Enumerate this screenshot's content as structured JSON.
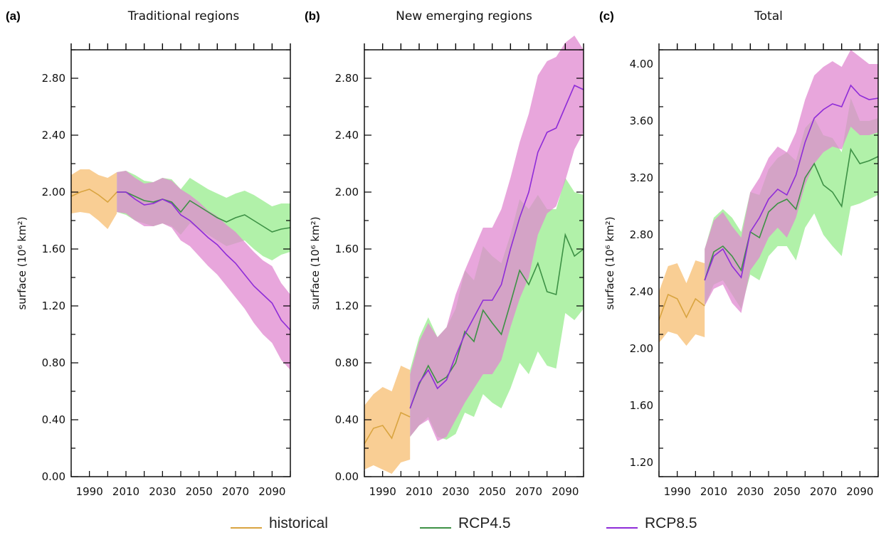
{
  "legend": {
    "historical": "historical",
    "rcp45": "RCP4.5",
    "rcp85": "RCP8.5"
  },
  "colors": {
    "historical_line": "#d9a440",
    "historical_band": "#f8c988",
    "rcp45_line": "#3d9145",
    "rcp45_band": "#a8f0a0",
    "rcp85_line": "#8e2cd8",
    "rcp85_band": "#e088d0"
  },
  "chart_data": [
    {
      "type": "line",
      "panel_label": "(a)",
      "title": "Traditional regions",
      "ylabel": "surface (10⁶ km²)",
      "xlim": [
        1980,
        2100
      ],
      "ylim": [
        0.0,
        3.0
      ],
      "yticks": [
        "0.00",
        "0.40",
        "0.80",
        "1.20",
        "1.60",
        "2.00",
        "2.40",
        "2.80"
      ],
      "xticks": [
        "1990",
        "2010",
        "2030",
        "2050",
        "2070",
        "2090"
      ],
      "series": [
        {
          "name": "historical",
          "x": [
            1980,
            1985,
            1990,
            1995,
            2000,
            2005
          ],
          "values": [
            1.97,
            2.0,
            2.02,
            1.98,
            1.93,
            2.0
          ],
          "lower": [
            1.85,
            1.86,
            1.85,
            1.8,
            1.74,
            1.85
          ],
          "upper": [
            2.12,
            2.16,
            2.16,
            2.12,
            2.1,
            2.14
          ]
        },
        {
          "name": "RCP4.5",
          "x": [
            2005,
            2010,
            2015,
            2020,
            2025,
            2030,
            2035,
            2040,
            2045,
            2050,
            2055,
            2060,
            2065,
            2070,
            2075,
            2080,
            2085,
            2090,
            2095,
            2100
          ],
          "values": [
            2.0,
            2.0,
            1.97,
            1.94,
            1.93,
            1.95,
            1.93,
            1.86,
            1.94,
            1.9,
            1.86,
            1.82,
            1.79,
            1.82,
            1.84,
            1.8,
            1.76,
            1.72,
            1.74,
            1.75
          ],
          "lower": [
            1.86,
            1.84,
            1.8,
            1.78,
            1.76,
            1.78,
            1.76,
            1.7,
            1.78,
            1.74,
            1.7,
            1.66,
            1.62,
            1.64,
            1.66,
            1.6,
            1.55,
            1.52,
            1.56,
            1.58
          ],
          "upper": [
            2.14,
            2.15,
            2.12,
            2.08,
            2.07,
            2.1,
            2.09,
            2.02,
            2.1,
            2.06,
            2.02,
            1.99,
            1.96,
            1.99,
            2.01,
            1.98,
            1.94,
            1.9,
            1.92,
            1.92
          ]
        },
        {
          "name": "RCP8.5",
          "x": [
            2005,
            2010,
            2015,
            2020,
            2025,
            2030,
            2035,
            2040,
            2045,
            2050,
            2055,
            2060,
            2065,
            2070,
            2075,
            2080,
            2085,
            2090,
            2095,
            2100
          ],
          "values": [
            2.0,
            2.0,
            1.95,
            1.91,
            1.92,
            1.95,
            1.92,
            1.84,
            1.8,
            1.74,
            1.68,
            1.63,
            1.56,
            1.5,
            1.42,
            1.34,
            1.28,
            1.22,
            1.1,
            1.03
          ],
          "lower": [
            1.86,
            1.85,
            1.8,
            1.76,
            1.76,
            1.78,
            1.75,
            1.66,
            1.62,
            1.55,
            1.48,
            1.42,
            1.34,
            1.26,
            1.18,
            1.08,
            1.0,
            0.94,
            0.82,
            0.75
          ],
          "upper": [
            2.14,
            2.15,
            2.1,
            2.06,
            2.07,
            2.1,
            2.08,
            2.02,
            1.98,
            1.93,
            1.87,
            1.83,
            1.77,
            1.72,
            1.65,
            1.58,
            1.52,
            1.48,
            1.36,
            1.28
          ]
        }
      ]
    },
    {
      "type": "line",
      "panel_label": "(b)",
      "title": "New emerging regions",
      "ylabel": "surface (10⁶ km²)",
      "xlim": [
        1980,
        2100
      ],
      "ylim": [
        0.0,
        3.0
      ],
      "yticks": [
        "0.00",
        "0.40",
        "0.80",
        "1.20",
        "1.60",
        "2.00",
        "2.40",
        "2.80"
      ],
      "xticks": [
        "1990",
        "2010",
        "2030",
        "2050",
        "2070",
        "2090"
      ],
      "series": [
        {
          "name": "historical",
          "x": [
            1980,
            1985,
            1990,
            1995,
            2000,
            2005
          ],
          "values": [
            0.23,
            0.34,
            0.36,
            0.27,
            0.45,
            0.42
          ],
          "lower": [
            0.05,
            0.08,
            0.05,
            0.02,
            0.1,
            0.12
          ],
          "upper": [
            0.5,
            0.58,
            0.63,
            0.6,
            0.78,
            0.75
          ]
        },
        {
          "name": "RCP4.5",
          "x": [
            2005,
            2010,
            2015,
            2020,
            2025,
            2030,
            2035,
            2040,
            2045,
            2050,
            2055,
            2060,
            2065,
            2070,
            2075,
            2080,
            2085,
            2090,
            2095,
            2100
          ],
          "values": [
            0.48,
            0.65,
            0.78,
            0.66,
            0.7,
            0.8,
            1.02,
            0.95,
            1.17,
            1.08,
            1.0,
            1.22,
            1.45,
            1.35,
            1.5,
            1.3,
            1.28,
            1.7,
            1.55,
            1.6
          ],
          "lower": [
            0.28,
            0.36,
            0.42,
            0.28,
            0.26,
            0.3,
            0.45,
            0.42,
            0.58,
            0.52,
            0.48,
            0.62,
            0.8,
            0.72,
            0.88,
            0.78,
            0.76,
            1.15,
            1.1,
            1.18
          ],
          "upper": [
            0.75,
            0.98,
            1.12,
            0.98,
            1.05,
            1.18,
            1.45,
            1.38,
            1.62,
            1.55,
            1.5,
            1.7,
            1.95,
            1.88,
            1.98,
            1.88,
            1.88,
            2.1,
            2.0,
            1.98
          ]
        },
        {
          "name": "RCP8.5",
          "x": [
            2005,
            2010,
            2015,
            2020,
            2025,
            2030,
            2035,
            2040,
            2045,
            2050,
            2055,
            2060,
            2065,
            2070,
            2075,
            2080,
            2085,
            2090,
            2095,
            2100
          ],
          "values": [
            0.48,
            0.66,
            0.75,
            0.62,
            0.68,
            0.85,
            1.0,
            1.12,
            1.24,
            1.24,
            1.35,
            1.6,
            1.82,
            2.0,
            2.28,
            2.42,
            2.45,
            2.6,
            2.75,
            2.72
          ],
          "lower": [
            0.28,
            0.36,
            0.4,
            0.25,
            0.28,
            0.4,
            0.52,
            0.62,
            0.72,
            0.72,
            0.82,
            1.05,
            1.25,
            1.4,
            1.7,
            1.85,
            1.9,
            2.08,
            2.3,
            2.42
          ],
          "upper": [
            0.72,
            0.95,
            1.08,
            0.98,
            1.05,
            1.28,
            1.45,
            1.6,
            1.75,
            1.75,
            1.88,
            2.1,
            2.35,
            2.55,
            2.82,
            2.92,
            2.95,
            3.05,
            3.1,
            3.0
          ]
        }
      ]
    },
    {
      "type": "line",
      "panel_label": "(c)",
      "title": "Total",
      "ylabel": "surface (10⁶ km²)",
      "xlim": [
        1980,
        2100
      ],
      "ylim": [
        1.1,
        4.1
      ],
      "yticks": [
        "1.20",
        "1.60",
        "2.00",
        "2.40",
        "2.80",
        "3.20",
        "3.60",
        "4.00"
      ],
      "xticks": [
        "1990",
        "2010",
        "2030",
        "2050",
        "2070",
        "2090"
      ],
      "series": [
        {
          "name": "historical",
          "x": [
            1980,
            1985,
            1990,
            1995,
            2000,
            2005
          ],
          "values": [
            2.2,
            2.38,
            2.35,
            2.22,
            2.35,
            2.3
          ],
          "lower": [
            2.04,
            2.12,
            2.1,
            2.02,
            2.1,
            2.08
          ],
          "upper": [
            2.4,
            2.58,
            2.6,
            2.46,
            2.62,
            2.6
          ]
        },
        {
          "name": "RCP4.5",
          "x": [
            2005,
            2010,
            2015,
            2020,
            2025,
            2030,
            2035,
            2040,
            2045,
            2050,
            2055,
            2060,
            2065,
            2070,
            2075,
            2080,
            2085,
            2090,
            2095,
            2100
          ],
          "values": [
            2.48,
            2.68,
            2.72,
            2.65,
            2.55,
            2.82,
            2.78,
            2.96,
            3.02,
            3.05,
            2.98,
            3.2,
            3.3,
            3.15,
            3.1,
            3.0,
            3.4,
            3.3,
            3.32,
            3.35
          ],
          "lower": [
            2.3,
            2.45,
            2.48,
            2.38,
            2.28,
            2.52,
            2.48,
            2.65,
            2.72,
            2.72,
            2.62,
            2.85,
            2.95,
            2.8,
            2.72,
            2.65,
            3.0,
            3.02,
            3.05,
            3.08
          ],
          "upper": [
            2.7,
            2.92,
            2.98,
            2.92,
            2.82,
            3.1,
            3.08,
            3.26,
            3.34,
            3.38,
            3.32,
            3.55,
            3.62,
            3.5,
            3.48,
            3.38,
            3.76,
            3.6,
            3.6,
            3.62
          ]
        },
        {
          "name": "RCP8.5",
          "x": [
            2005,
            2010,
            2015,
            2020,
            2025,
            2030,
            2035,
            2040,
            2045,
            2050,
            2055,
            2060,
            2065,
            2070,
            2075,
            2080,
            2085,
            2090,
            2095,
            2100
          ],
          "values": [
            2.48,
            2.65,
            2.7,
            2.58,
            2.5,
            2.82,
            2.92,
            3.05,
            3.12,
            3.08,
            3.22,
            3.45,
            3.62,
            3.68,
            3.72,
            3.7,
            3.85,
            3.78,
            3.75,
            3.76
          ],
          "lower": [
            2.3,
            2.42,
            2.45,
            2.32,
            2.25,
            2.55,
            2.64,
            2.78,
            2.85,
            2.78,
            2.92,
            3.15,
            3.3,
            3.38,
            3.42,
            3.4,
            3.56,
            3.5,
            3.5,
            3.52
          ],
          "upper": [
            2.7,
            2.9,
            2.96,
            2.86,
            2.78,
            3.1,
            3.2,
            3.34,
            3.42,
            3.38,
            3.52,
            3.75,
            3.92,
            3.98,
            4.02,
            3.98,
            4.1,
            4.05,
            4.0,
            4.0
          ]
        }
      ]
    }
  ]
}
